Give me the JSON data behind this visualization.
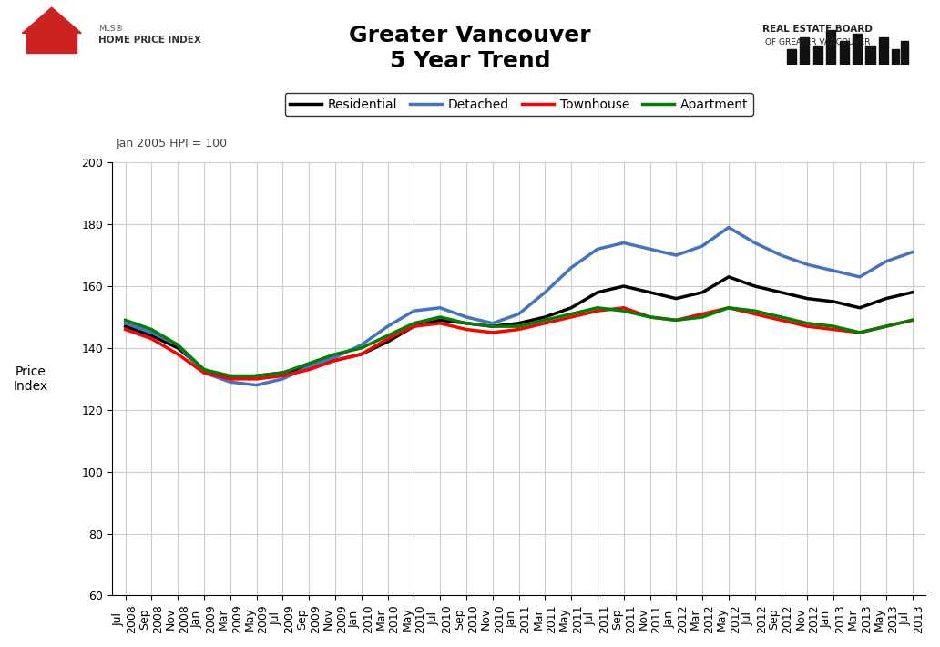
{
  "title_line1": "Greater Vancouver",
  "title_line2": "5 Year Trend",
  "ylabel": "Price\nIndex",
  "note": "Jan 2005 HPI = 100",
  "ylim": [
    60,
    200
  ],
  "yticks": [
    60,
    80,
    100,
    120,
    140,
    160,
    180,
    200
  ],
  "series_labels": [
    "Residential",
    "Detached",
    "Townhouse",
    "Apartment"
  ],
  "series_colors": [
    "#000000",
    "#4472C4",
    "#FF0000",
    "#008000"
  ],
  "x_labels": [
    "Jul\n2008",
    "Sep\n2008",
    "Nov\n2008",
    "Jan\n2009",
    "Mar\n2009",
    "May\n2009",
    "Jul\n2009",
    "Sep\n2009",
    "Nov\n2009",
    "Jan\n2010",
    "Mar\n2010",
    "May\n2010",
    "Jul\n2010",
    "Sep\n2010",
    "Nov\n2010",
    "Jan\n2011",
    "Mar\n2011",
    "May\n2011",
    "Jul\n2011",
    "Sep\n2011",
    "Nov\n2011",
    "Jan\n2012",
    "Mar\n2012",
    "May\n2012",
    "Jul\n2012",
    "Sep\n2012",
    "Nov\n2012",
    "Jan\n2013",
    "Mar\n2013",
    "May\n2013",
    "Jul\n2013"
  ],
  "residential": [
    147,
    144,
    140,
    133,
    130,
    131,
    132,
    134,
    136,
    138,
    142,
    147,
    149,
    148,
    147,
    148,
    150,
    153,
    158,
    160,
    158,
    156,
    158,
    163,
    160,
    158,
    156,
    155,
    153,
    156,
    158
  ],
  "detached": [
    148,
    145,
    141,
    132,
    129,
    128,
    130,
    134,
    137,
    141,
    147,
    152,
    153,
    150,
    148,
    151,
    158,
    166,
    172,
    174,
    172,
    170,
    173,
    179,
    174,
    170,
    167,
    165,
    163,
    168,
    171
  ],
  "townhouse": [
    146,
    143,
    138,
    132,
    130,
    130,
    131,
    133,
    136,
    138,
    143,
    147,
    148,
    146,
    145,
    146,
    148,
    150,
    152,
    153,
    150,
    149,
    151,
    153,
    151,
    149,
    147,
    146,
    145,
    147,
    149
  ],
  "apartment": [
    149,
    146,
    141,
    133,
    131,
    131,
    132,
    135,
    138,
    140,
    144,
    148,
    150,
    148,
    147,
    147,
    149,
    151,
    153,
    152,
    150,
    149,
    150,
    153,
    152,
    150,
    148,
    147,
    145,
    147,
    149
  ],
  "background_color": "#FFFFFF",
  "grid_color": "#CCCCCC",
  "title_fontsize": 18,
  "axis_fontsize": 10,
  "tick_fontsize": 9
}
